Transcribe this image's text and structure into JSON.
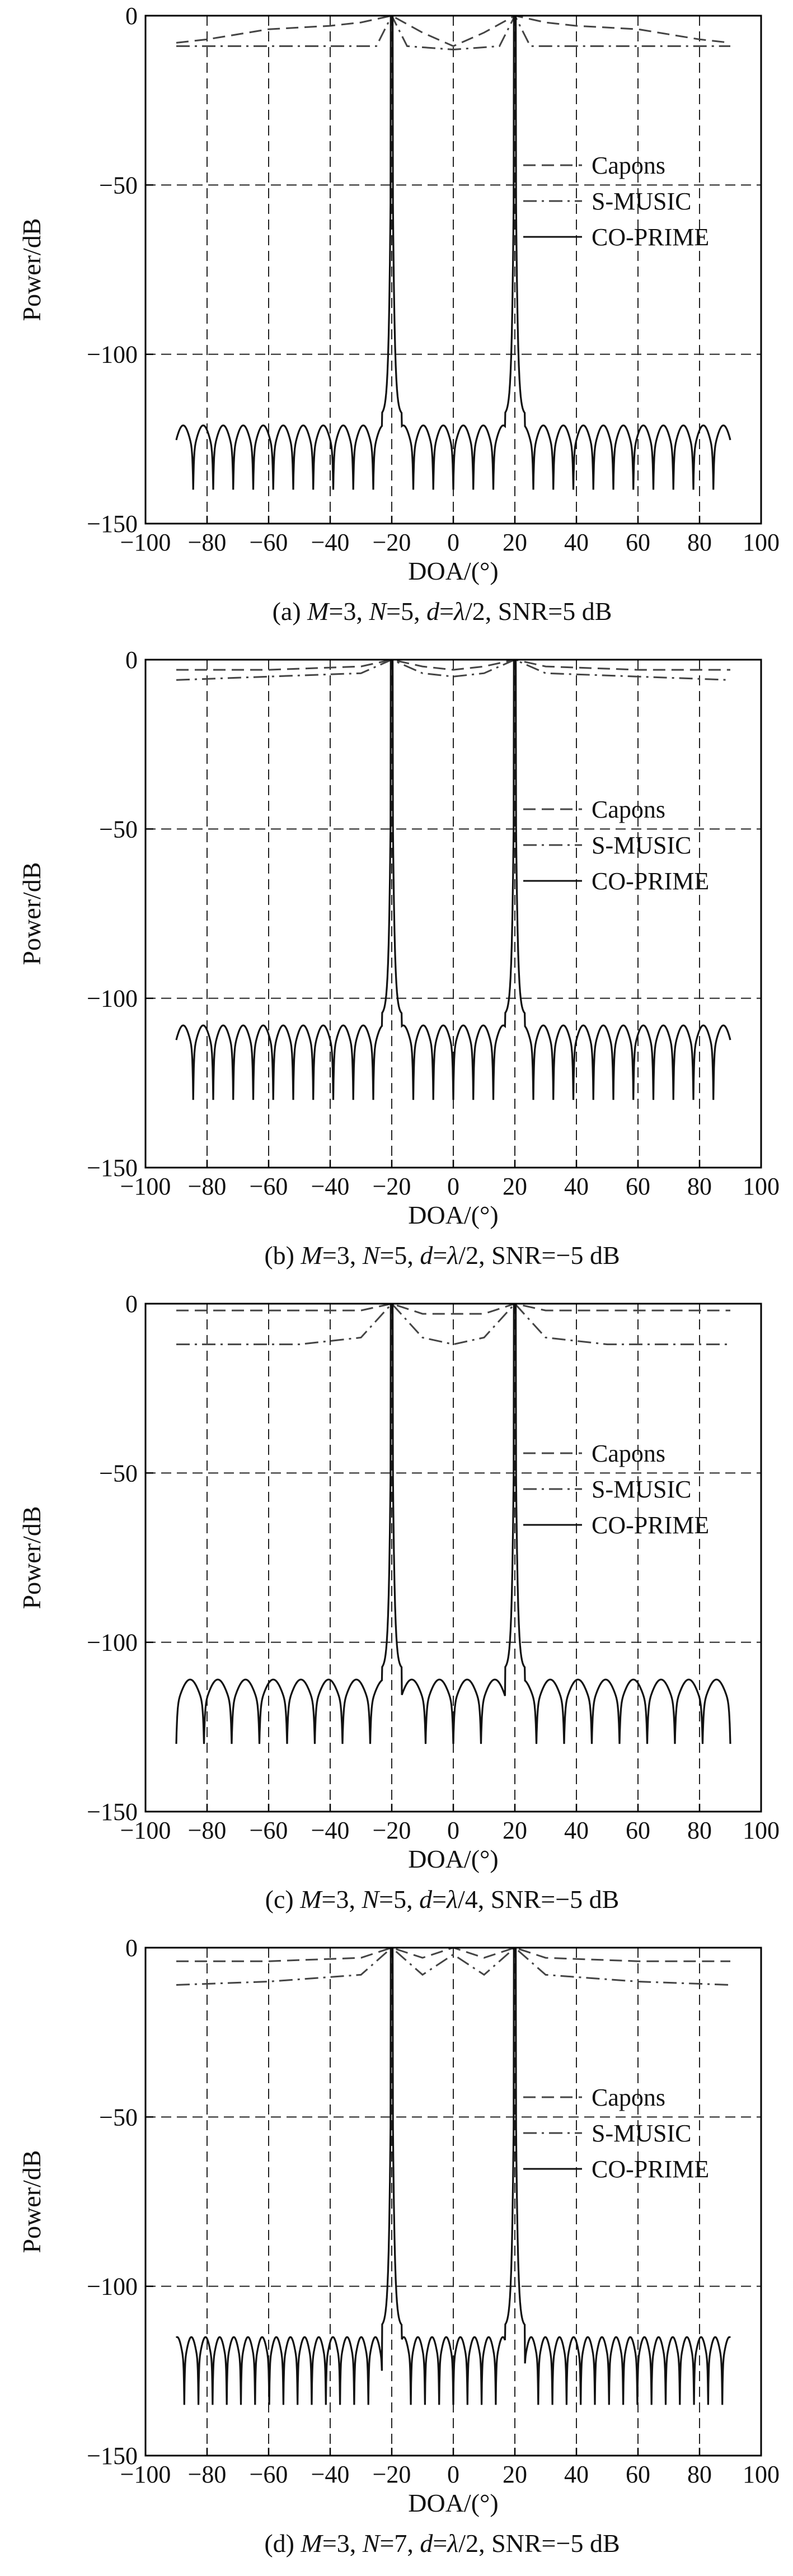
{
  "chart_data": [
    {
      "type": "line",
      "caption": "(a) M=3, N=5, d=λ/2, SNR=5 dB",
      "caption_parts": [
        {
          "t": "(a) ",
          "i": false
        },
        {
          "t": "M",
          "i": true
        },
        {
          "t": "=3, ",
          "i": false
        },
        {
          "t": "N",
          "i": true
        },
        {
          "t": "=5, ",
          "i": false
        },
        {
          "t": "d",
          "i": true
        },
        {
          "t": "=",
          "i": false
        },
        {
          "t": "λ",
          "i": true
        },
        {
          "t": "/2, SNR=5 dB",
          "i": false
        }
      ],
      "xlabel": "DOA/(°)",
      "ylabel": "Power/dB",
      "xlim": [
        -100,
        100
      ],
      "ylim": [
        -150,
        0
      ],
      "xticks": [
        -100,
        -80,
        -60,
        -40,
        -20,
        0,
        20,
        40,
        60,
        80,
        100
      ],
      "xtick_labels": [
        "−100",
        "−80",
        "−60",
        "−40",
        "−20",
        "0",
        "20",
        "40",
        "60",
        "80",
        "100"
      ],
      "yticks": [
        0,
        -50,
        -100,
        -150
      ],
      "ytick_labels": [
        "0",
        "−50",
        "−100",
        "−150"
      ],
      "grid": true,
      "legend_position": "right, mid-upper",
      "legend": [
        "Capons",
        "S-MUSIC",
        "CO-PRIME"
      ],
      "series": [
        {
          "name": "Capons",
          "style": "dashed",
          "x": [
            -90,
            -80,
            -60,
            -40,
            -30,
            -20,
            -10,
            0,
            10,
            20,
            30,
            40,
            60,
            80,
            90
          ],
          "y": [
            -8,
            -7,
            -4,
            -3,
            -2,
            0,
            -5,
            -9,
            -5,
            0,
            -2,
            -3,
            -4,
            -7,
            -8
          ]
        },
        {
          "name": "S-MUSIC",
          "style": "dashdot",
          "x": [
            -90,
            -60,
            -25,
            -20,
            -15,
            0,
            15,
            20,
            25,
            60,
            90
          ],
          "y": [
            -9,
            -9,
            -9,
            0,
            -9,
            -10,
            -9,
            0,
            -9,
            -9,
            -9
          ]
        },
        {
          "name": "CO-PRIME",
          "style": "solid",
          "spikes": [
            -20,
            20
          ],
          "floor": -118,
          "null_depth": -140,
          "null_period": 6.5,
          "x_range": [
            -90,
            90
          ]
        }
      ]
    },
    {
      "type": "line",
      "caption": "(b) M=3, N=5, d=λ/2, SNR=−5 dB",
      "caption_parts": [
        {
          "t": "(b) ",
          "i": false
        },
        {
          "t": "M",
          "i": true
        },
        {
          "t": "=3, ",
          "i": false
        },
        {
          "t": "N",
          "i": true
        },
        {
          "t": "=5, ",
          "i": false
        },
        {
          "t": "d",
          "i": true
        },
        {
          "t": "=",
          "i": false
        },
        {
          "t": "λ",
          "i": true
        },
        {
          "t": "/2, SNR=−5 dB",
          "i": false
        }
      ],
      "xlabel": "DOA/(°)",
      "ylabel": "Power/dB",
      "xlim": [
        -100,
        100
      ],
      "ylim": [
        -150,
        0
      ],
      "xticks": [
        -100,
        -80,
        -60,
        -40,
        -20,
        0,
        20,
        40,
        60,
        80,
        100
      ],
      "xtick_labels": [
        "−100",
        "−80",
        "−60",
        "−40",
        "−20",
        "0",
        "20",
        "40",
        "60",
        "80",
        "100"
      ],
      "yticks": [
        0,
        -50,
        -100,
        -150
      ],
      "ytick_labels": [
        "0",
        "−50",
        "−100",
        "−150"
      ],
      "grid": true,
      "legend_position": "right, mid-upper",
      "legend": [
        "Capons",
        "S-MUSIC",
        "CO-PRIME"
      ],
      "series": [
        {
          "name": "Capons",
          "style": "dashed",
          "x": [
            -90,
            -60,
            -30,
            -20,
            -10,
            0,
            10,
            20,
            30,
            60,
            90
          ],
          "y": [
            -3,
            -3,
            -2,
            0,
            -2,
            -3,
            -2,
            0,
            -2,
            -3,
            -3
          ]
        },
        {
          "name": "S-MUSIC",
          "style": "dashdot",
          "x": [
            -90,
            -60,
            -30,
            -20,
            -10,
            0,
            10,
            20,
            30,
            60,
            90
          ],
          "y": [
            -6,
            -5,
            -4,
            0,
            -4,
            -5,
            -4,
            0,
            -4,
            -5,
            -6
          ]
        },
        {
          "name": "CO-PRIME",
          "style": "solid",
          "spikes": [
            -20,
            20
          ],
          "floor": -105,
          "null_depth": -130,
          "null_period": 6.5,
          "x_range": [
            -90,
            90
          ]
        }
      ]
    },
    {
      "type": "line",
      "caption": "(c) M=3, N=5, d=λ/4, SNR=−5 dB",
      "caption_parts": [
        {
          "t": "(c) ",
          "i": false
        },
        {
          "t": "M",
          "i": true
        },
        {
          "t": "=3, ",
          "i": false
        },
        {
          "t": "N",
          "i": true
        },
        {
          "t": "=5, ",
          "i": false
        },
        {
          "t": "d",
          "i": true
        },
        {
          "t": "=",
          "i": false
        },
        {
          "t": "λ",
          "i": true
        },
        {
          "t": "/4, SNR=−5 dB",
          "i": false
        }
      ],
      "xlabel": "DOA/(°)",
      "ylabel": "Power/dB",
      "xlim": [
        -100,
        100
      ],
      "ylim": [
        -150,
        0
      ],
      "xticks": [
        -100,
        -80,
        -60,
        -40,
        -20,
        0,
        20,
        40,
        60,
        80,
        100
      ],
      "xtick_labels": [
        "−100",
        "−80",
        "−60",
        "−40",
        "−20",
        "0",
        "20",
        "40",
        "60",
        "80",
        "100"
      ],
      "yticks": [
        0,
        -50,
        -100,
        -150
      ],
      "ytick_labels": [
        "0",
        "−50",
        "−100",
        "−150"
      ],
      "grid": true,
      "legend_position": "right, mid-upper",
      "legend": [
        "Capons",
        "S-MUSIC",
        "CO-PRIME"
      ],
      "series": [
        {
          "name": "Capons",
          "style": "dashed",
          "x": [
            -90,
            -60,
            -30,
            -20,
            -10,
            0,
            10,
            20,
            30,
            60,
            90
          ],
          "y": [
            -2,
            -2,
            -2,
            0,
            -3,
            -3,
            -3,
            0,
            -2,
            -2,
            -2
          ]
        },
        {
          "name": "S-MUSIC",
          "style": "dashdot",
          "x": [
            -90,
            -50,
            -30,
            -20,
            -10,
            0,
            10,
            20,
            30,
            50,
            90
          ],
          "y": [
            -12,
            -12,
            -10,
            0,
            -10,
            -12,
            -10,
            0,
            -10,
            -12,
            -12
          ]
        },
        {
          "name": "CO-PRIME",
          "style": "solid",
          "spikes": [
            -20,
            20
          ],
          "floor": -108,
          "null_depth": -130,
          "null_period": 9,
          "x_range": [
            -90,
            90
          ]
        }
      ]
    },
    {
      "type": "line",
      "caption": "(d) M=3, N=7, d=λ/2, SNR=−5 dB",
      "caption_parts": [
        {
          "t": "(d) ",
          "i": false
        },
        {
          "t": "M",
          "i": true
        },
        {
          "t": "=3, ",
          "i": false
        },
        {
          "t": "N",
          "i": true
        },
        {
          "t": "=7, ",
          "i": false
        },
        {
          "t": "d",
          "i": true
        },
        {
          "t": "=",
          "i": false
        },
        {
          "t": "λ",
          "i": true
        },
        {
          "t": "/2, SNR=−5 dB",
          "i": false
        }
      ],
      "xlabel": "DOA/(°)",
      "ylabel": "Power/dB",
      "xlim": [
        -100,
        100
      ],
      "ylim": [
        -150,
        0
      ],
      "xticks": [
        -100,
        -80,
        -60,
        -40,
        -20,
        0,
        20,
        40,
        60,
        80,
        100
      ],
      "xtick_labels": [
        "−100",
        "−80",
        "−60",
        "−40",
        "−20",
        "0",
        "20",
        "40",
        "60",
        "80",
        "100"
      ],
      "yticks": [
        0,
        -50,
        -100,
        -150
      ],
      "ytick_labels": [
        "0",
        "−50",
        "−100",
        "−150"
      ],
      "grid": true,
      "legend_position": "right, mid-upper",
      "legend": [
        "Capons",
        "S-MUSIC",
        "CO-PRIME"
      ],
      "series": [
        {
          "name": "Capons",
          "style": "dashed",
          "x": [
            -90,
            -60,
            -30,
            -20,
            -10,
            0,
            10,
            20,
            30,
            60,
            90
          ],
          "y": [
            -4,
            -4,
            -3,
            0,
            -3,
            0,
            -3,
            0,
            -3,
            -4,
            -4
          ]
        },
        {
          "name": "S-MUSIC",
          "style": "dashdot",
          "x": [
            -90,
            -60,
            -30,
            -20,
            -10,
            0,
            10,
            20,
            30,
            60,
            90
          ],
          "y": [
            -11,
            -10,
            -8,
            0,
            -8,
            -2,
            -8,
            0,
            -8,
            -10,
            -11
          ]
        },
        {
          "name": "CO-PRIME",
          "style": "solid",
          "spikes": [
            -20,
            20
          ],
          "floor": -112,
          "null_depth": -135,
          "null_period": 4.6,
          "x_range": [
            -90,
            90
          ]
        }
      ]
    }
  ]
}
